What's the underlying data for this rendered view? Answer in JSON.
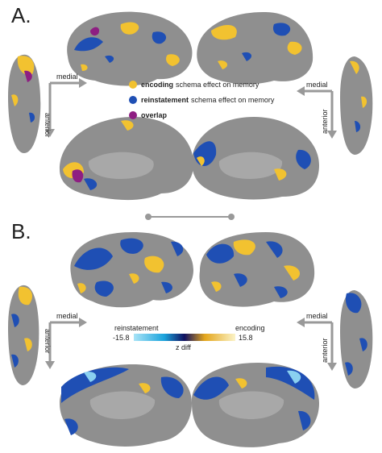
{
  "panels": {
    "a_label": "A.",
    "b_label": "B."
  },
  "legend_a": {
    "items": [
      {
        "bold": "encoding",
        "text": "schema effect on memory",
        "color": "#f2c230"
      },
      {
        "bold": "reinstatement",
        "text": "schema effect on memory",
        "color": "#1f4fb4"
      },
      {
        "bold": "overlap",
        "text": "",
        "color": "#8e1e82"
      }
    ]
  },
  "orientation": {
    "medial": "medial",
    "anterior": "anterior"
  },
  "colorbar_b": {
    "left_label": "reinstatement",
    "right_label": "encoding",
    "min": "-15.8",
    "max": "15.8",
    "axis_label": "z diff"
  },
  "colors": {
    "cortex": "#8f8f8f",
    "cortex_light": "#a8a8a8",
    "encoding": "#f2c230",
    "reinstatement": "#1f4fb4",
    "overlap": "#8e1e82",
    "arrow": "#999999"
  }
}
